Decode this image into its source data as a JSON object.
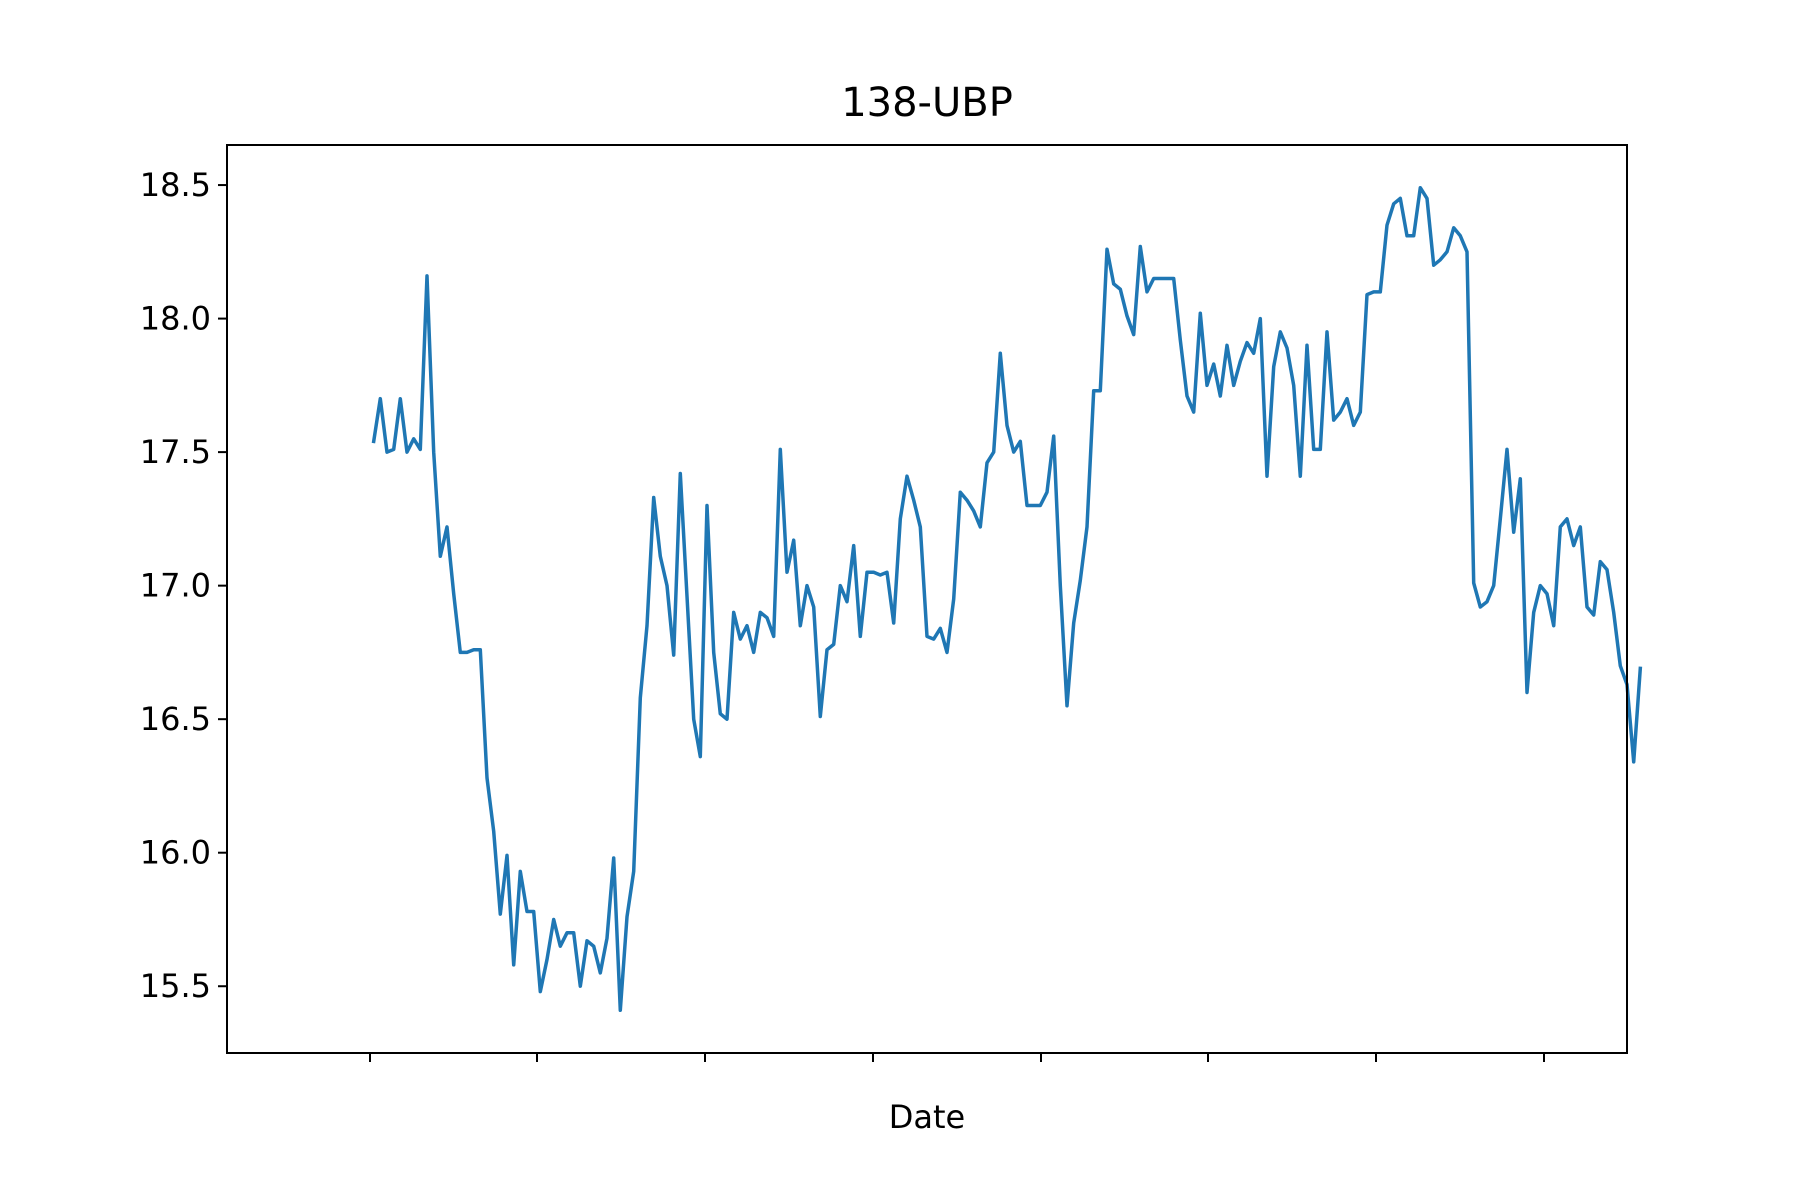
{
  "chart_data": {
    "type": "line",
    "title": "138-UBP",
    "xlabel": "Date",
    "ylabel": "",
    "ylim": [
      15.25,
      18.65
    ],
    "xlim": [
      -22,
      188
    ],
    "yticks": [
      15.5,
      16.0,
      16.5,
      17.0,
      17.5,
      18.0,
      18.5
    ],
    "ytick_labels": [
      "15.5",
      "16.0",
      "16.5",
      "17.0",
      "17.5",
      "18.0",
      "18.5"
    ],
    "xtick_labels": [],
    "grid": false,
    "legend": "none",
    "line_color": "#1f77b4",
    "series": [
      {
        "values": [
          17.54,
          17.7,
          17.5,
          17.51,
          17.7,
          17.5,
          17.55,
          17.51,
          18.16,
          17.5,
          17.11,
          17.22,
          16.97,
          16.75,
          16.75,
          16.76,
          16.76,
          16.28,
          16.08,
          15.77,
          15.99,
          15.58,
          15.93,
          15.78,
          15.78,
          15.48,
          15.6,
          15.75,
          15.65,
          15.7,
          15.7,
          15.5,
          15.67,
          15.65,
          15.55,
          15.68,
          15.98,
          15.41,
          15.76,
          15.93,
          16.58,
          16.85,
          17.33,
          17.11,
          17.0,
          16.74,
          17.42,
          16.96,
          16.5,
          16.36,
          17.3,
          16.75,
          16.52,
          16.5,
          16.9,
          16.8,
          16.85,
          16.75,
          16.9,
          16.88,
          16.81,
          17.51,
          17.05,
          17.17,
          16.85,
          17.0,
          16.92,
          16.51,
          16.76,
          16.78,
          17.0,
          16.94,
          17.15,
          16.81,
          17.05,
          17.05,
          17.04,
          17.05,
          16.86,
          17.25,
          17.41,
          17.32,
          17.22,
          16.81,
          16.8,
          16.84,
          16.75,
          16.95,
          17.35,
          17.32,
          17.28,
          17.22,
          17.46,
          17.5,
          17.87,
          17.6,
          17.5,
          17.54,
          17.3,
          17.3,
          17.3,
          17.35,
          17.56,
          17.0,
          16.55,
          16.86,
          17.02,
          17.22,
          17.73,
          17.73,
          18.26,
          18.13,
          18.11,
          18.01,
          17.94,
          18.27,
          18.1,
          18.15,
          18.15,
          18.15,
          18.15,
          17.92,
          17.71,
          17.65,
          18.02,
          17.75,
          17.83,
          17.71,
          17.9,
          17.75,
          17.84,
          17.91,
          17.87,
          18.0,
          17.41,
          17.82,
          17.95,
          17.89,
          17.75,
          17.41,
          17.9,
          17.51,
          17.51,
          17.95,
          17.62,
          17.65,
          17.7,
          17.6,
          17.65,
          18.09,
          18.1,
          18.1,
          18.35,
          18.43,
          18.45,
          18.31,
          18.31,
          18.49,
          18.45,
          18.2,
          18.22,
          18.25,
          18.34,
          18.31,
          18.25,
          17.01,
          16.92,
          16.94,
          17.0,
          17.25,
          17.51,
          17.2,
          17.4,
          16.6,
          16.9,
          17.0,
          16.97,
          16.85,
          17.22,
          17.25,
          17.15,
          17.22,
          16.92,
          16.89,
          17.09,
          17.06,
          16.9,
          16.7,
          16.63,
          16.34,
          16.69
        ]
      }
    ]
  }
}
